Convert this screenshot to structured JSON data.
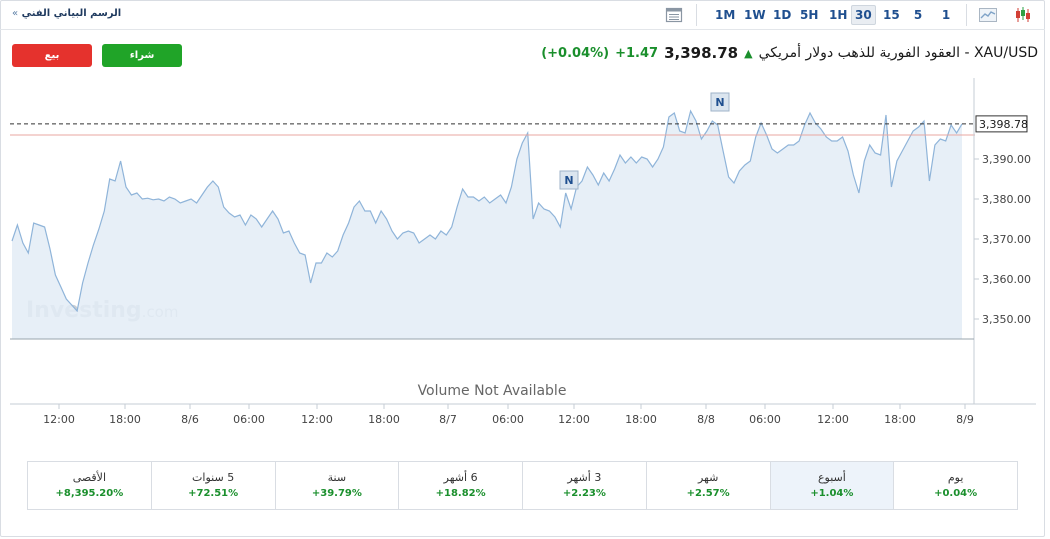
{
  "toolbar": {
    "title": "الرسم البياني الفني",
    "chevron": "»",
    "timeframes": [
      "1M",
      "1W",
      "1D",
      "5H",
      "1H",
      "30",
      "15",
      "5",
      "1"
    ],
    "active_timeframe": "30",
    "icons": [
      "table-view-icon",
      "area-chart-icon",
      "candlestick-icon"
    ]
  },
  "buttons": {
    "sell": "بيع",
    "buy": "شراء",
    "sell_color": "#e5322d",
    "buy_color": "#20a428"
  },
  "instrument": {
    "name": "XAU/USD - العقود الفورية للذهب دولار أمريكي",
    "price": "3,398.78",
    "change": "+1.47",
    "change_pct": "(+0.04%)",
    "up_color": "#1a8f2c"
  },
  "chart_data": {
    "type": "area",
    "x_tick_labels": [
      "12:00",
      "18:00",
      "8/6",
      "06:00",
      "12:00",
      "18:00",
      "8/7",
      "06:00",
      "12:00",
      "18:00",
      "8/8",
      "06:00",
      "12:00",
      "18:00",
      "8/9"
    ],
    "y_ticks": [
      3350,
      3360,
      3370,
      3380,
      3390
    ],
    "y_tick_labels": [
      "3,350.00",
      "3,360.00",
      "3,370.00",
      "3,380.00",
      "3,390.00"
    ],
    "ylim": [
      3345,
      3404
    ],
    "last_price": 3398.78,
    "last_price_label": "3,398.78",
    "series": [
      {
        "values": [
          3369.5,
          3373.5,
          3369,
          3366.5,
          3374,
          3373.5,
          3373,
          3367.5,
          3361,
          3358,
          3355,
          3353.5,
          3352,
          3359,
          3364,
          3368.5,
          3372.5,
          3377,
          3385,
          3384.5,
          3389.5,
          3383,
          3381,
          3381.5,
          3380,
          3380.2,
          3379.8,
          3380,
          3379.5,
          3380.5,
          3380,
          3379,
          3379.5,
          3380,
          3379,
          3381,
          3383,
          3384.5,
          3383,
          3378,
          3376.5,
          3375.5,
          3376,
          3373.5,
          3376,
          3375,
          3373,
          3375,
          3377,
          3375,
          3371.5,
          3372,
          3369,
          3366.5,
          3366,
          3359,
          3364,
          3364,
          3366.5,
          3365.5,
          3367,
          3371,
          3374,
          3378,
          3379.5,
          3377,
          3377,
          3374,
          3377,
          3375,
          3372,
          3370,
          3371.5,
          3372,
          3371.5,
          3369,
          3370,
          3371,
          3370,
          3372,
          3371,
          3373,
          3378,
          3382.5,
          3380.5,
          3380.5,
          3379.5,
          3380.5,
          3379,
          3380,
          3381,
          3379,
          3383,
          3390,
          3394,
          3396.5,
          3375,
          3379,
          3377.5,
          3377,
          3375.5,
          3373,
          3381.5,
          3377.5,
          3383,
          3384.5,
          3388,
          3386,
          3383.5,
          3386.5,
          3384.5,
          3387.5,
          3391,
          3389,
          3390.5,
          3389,
          3390.5,
          3390,
          3388,
          3390,
          3393,
          3400.5,
          3401.5,
          3397,
          3396.5,
          3402,
          3399.5,
          3395,
          3397,
          3399.5,
          3398.5,
          3392,
          3385.5,
          3384,
          3387,
          3388.5,
          3389.5,
          3395.5,
          3399,
          3396,
          3392.5,
          3391.5,
          3392.5,
          3393.5,
          3393.5,
          3394.5,
          3398.5,
          3401.5,
          3399,
          3397.5,
          3395.5,
          3394.5,
          3394.5,
          3395.5,
          3392,
          3386,
          3381.5,
          3389.5,
          3393.5,
          3391.5,
          3391,
          3401,
          3383,
          3389.5,
          3392,
          3394.5,
          3397,
          3398,
          3399.5,
          3384.5,
          3393.5,
          3395,
          3394.5,
          3398.5,
          3396.5,
          3398.78
        ]
      }
    ],
    "news_markers": [
      "N",
      "N"
    ],
    "volume_note": "Volume Not Available",
    "watermark": "Investing",
    "watermark_suffix": ".com",
    "grid": false,
    "line_color": "#8fb4d9",
    "fill_color": "#e3ecf6"
  },
  "performance": [
    {
      "label": "الأقصى",
      "value": "+8,395.20%"
    },
    {
      "label": "5 سنوات",
      "value": "+72.51%"
    },
    {
      "label": "سنة",
      "value": "+39.79%"
    },
    {
      "label": "6 أشهر",
      "value": "+18.82%"
    },
    {
      "label": "3 أشهر",
      "value": "+2.23%"
    },
    {
      "label": "شهر",
      "value": "+2.57%"
    },
    {
      "label": "أسبوع",
      "value": "+1.04%",
      "active": true
    },
    {
      "label": "يوم",
      "value": "+0.04%"
    }
  ]
}
